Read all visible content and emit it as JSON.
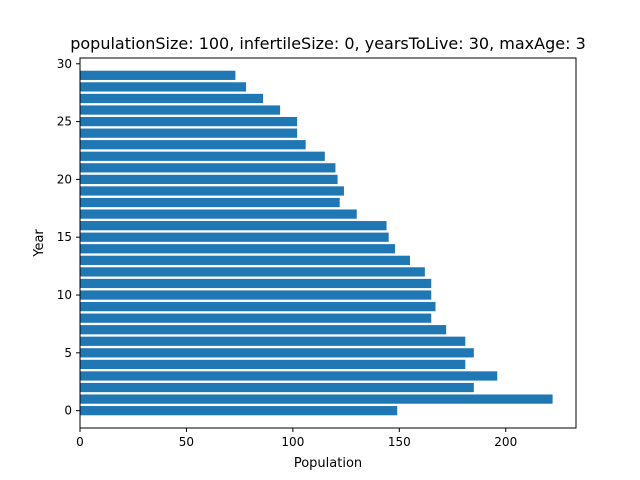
{
  "chart_data": {
    "type": "bar",
    "orientation": "horizontal",
    "title": "populationSize: 100, infertileSize: 0, yearsToLive: 30, maxAge: 3",
    "xlabel": "Population",
    "ylabel": "Year",
    "xlim": [
      0,
      233
    ],
    "ylim": [
      -1.5,
      30.5
    ],
    "xticks": [
      0,
      50,
      100,
      150,
      200
    ],
    "yticks": [
      0,
      5,
      10,
      15,
      20,
      25,
      30
    ],
    "bar_color": "#1f77b4",
    "grid": false,
    "legend": "none",
    "categories": [
      0,
      1,
      2,
      3,
      4,
      5,
      6,
      7,
      8,
      9,
      10,
      11,
      12,
      13,
      14,
      15,
      16,
      17,
      18,
      19,
      20,
      21,
      22,
      23,
      24,
      25,
      26,
      27,
      28,
      29
    ],
    "values": [
      149,
      222,
      185,
      196,
      181,
      185,
      181,
      172,
      165,
      167,
      165,
      165,
      162,
      155,
      148,
      145,
      144,
      130,
      122,
      124,
      121,
      120,
      115,
      106,
      102,
      102,
      94,
      86,
      78,
      73
    ]
  }
}
